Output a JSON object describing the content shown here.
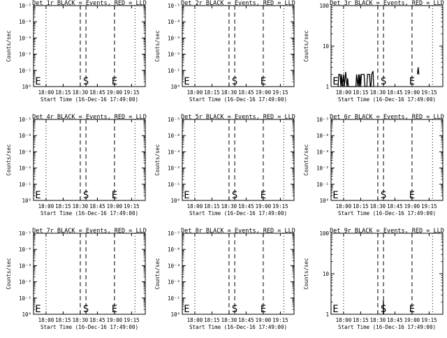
{
  "chart_data": [
    {
      "type": "line",
      "title": "Det 1r BLACK = Events, RED = LLD",
      "ylabel": "Counts/sec",
      "xlabel": "Start Time (16-Dec-16 17:49:00)",
      "x_ticks": [
        "18:00",
        "18:15",
        "18:30",
        "18:45",
        "19:00",
        "19:15"
      ],
      "y_scale": "log",
      "y_ticks": [
        "10⁰",
        "10⁻¹",
        "10⁻²",
        "10⁻³",
        "10⁻⁴",
        "10⁻⁵"
      ],
      "markers": {
        "E1": "E",
        "S": "S",
        "E2": "E"
      },
      "series": []
    },
    {
      "type": "line",
      "title": "Det 2r BLACK = Events, RED = LLD",
      "ylabel": "Counts/sec",
      "xlabel": "Start Time (16-Dec-16 17:49:00)",
      "x_ticks": [
        "18:00",
        "18:15",
        "18:30",
        "18:45",
        "19:00",
        "19:15"
      ],
      "y_scale": "log",
      "y_ticks": [
        "10⁰",
        "10⁻¹",
        "10⁻²",
        "10⁻³",
        "10⁻⁴",
        "10⁻⁵"
      ],
      "markers": {
        "E1": "E",
        "S": "S",
        "E2": "E"
      },
      "series": []
    },
    {
      "type": "line",
      "title": "Det 3r BLACK = Events, RED = LLD",
      "ylabel": "Counts/sec",
      "xlabel": "Start Time (16-Dec-16 17:49:00)",
      "x_ticks": [
        "18:00",
        "18:15",
        "18:30",
        "18:45",
        "19:00",
        "19:15"
      ],
      "y_scale": "log",
      "y_ticks": [
        "1",
        "10",
        "100"
      ],
      "markers": {
        "E1": "E",
        "S": "S",
        "E2": "E"
      },
      "series": [
        {
          "color": "#000000",
          "points": [
            [
              17.92,
              1
            ],
            [
              17.93,
              2
            ],
            [
              17.95,
              2
            ],
            [
              17.96,
              1
            ],
            [
              17.97,
              2
            ],
            [
              17.98,
              1
            ],
            [
              18.0,
              2
            ],
            [
              18.01,
              1
            ],
            [
              18.03,
              2.3
            ],
            [
              18.05,
              1
            ],
            [
              18.06,
              1.6
            ],
            [
              18.07,
              1
            ],
            [
              18.18,
              1
            ],
            [
              18.19,
              2
            ],
            [
              18.21,
              1
            ],
            [
              18.22,
              2
            ],
            [
              18.23,
              1
            ],
            [
              18.24,
              2
            ],
            [
              18.25,
              1
            ],
            [
              18.26,
              2
            ],
            [
              18.3,
              2
            ],
            [
              18.31,
              1
            ],
            [
              18.34,
              1
            ],
            [
              18.35,
              2
            ],
            [
              18.38,
              2
            ],
            [
              18.39,
              1
            ],
            [
              18.4,
              1
            ],
            [
              18.41,
              2
            ],
            [
              18.43,
              2.4
            ],
            [
              18.44,
              1
            ],
            [
              18.45,
              1
            ]
          ]
        },
        {
          "color": "#000000",
          "points": [
            [
              19.08,
              2
            ],
            [
              19.09,
              3
            ],
            [
              19.1,
              2
            ]
          ]
        }
      ]
    },
    {
      "type": "line",
      "title": "Det 4r BLACK = Events, RED = LLD",
      "ylabel": "Counts/sec",
      "xlabel": "Start Time (16-Dec-16 17:49:00)",
      "x_ticks": [
        "18:00",
        "18:15",
        "18:30",
        "18:45",
        "19:00",
        "19:15"
      ],
      "y_scale": "log",
      "y_ticks": [
        "10⁰",
        "10⁻¹",
        "10⁻²",
        "10⁻³",
        "10⁻⁴",
        "10⁻⁵"
      ],
      "markers": {
        "E1": "E",
        "S": "S",
        "E2": "E"
      },
      "series": []
    },
    {
      "type": "line",
      "title": "Det 5r BLACK = Events, RED = LLD",
      "ylabel": "Counts/sec",
      "xlabel": "Start Time (16-Dec-16 17:49:00)",
      "x_ticks": [
        "18:00",
        "18:15",
        "18:30",
        "18:45",
        "19:00",
        "19:15"
      ],
      "y_scale": "log",
      "y_ticks": [
        "10⁰",
        "10⁻¹",
        "10⁻²",
        "10⁻³",
        "10⁻⁴",
        "10⁻⁵"
      ],
      "markers": {
        "E1": "E",
        "S": "S",
        "E2": "E"
      },
      "series": []
    },
    {
      "type": "line",
      "title": "Det 6r BLACK = Events, RED = LLD",
      "ylabel": "Counts/sec",
      "xlabel": "Start Time (16-Dec-16 17:49:00)",
      "x_ticks": [
        "18:00",
        "18:15",
        "18:30",
        "18:45",
        "19:00",
        "19:15"
      ],
      "y_scale": "log",
      "y_ticks": [
        "10⁰",
        "10⁻¹",
        "10⁻²",
        "10⁻³",
        "10⁻⁴",
        "10⁻⁵"
      ],
      "markers": {
        "E1": "E",
        "S": "S",
        "E2": "E"
      },
      "series": []
    },
    {
      "type": "line",
      "title": "Det 7r BLACK = Events, RED = LLD",
      "ylabel": "Counts/sec",
      "xlabel": "Start Time (16-Dec-16 17:49:00)",
      "x_ticks": [
        "18:00",
        "18:15",
        "18:30",
        "18:45",
        "19:00",
        "19:15"
      ],
      "y_scale": "log",
      "y_ticks": [
        "10⁰",
        "10⁻¹",
        "10⁻²",
        "10⁻³",
        "10⁻⁴",
        "10⁻⁵"
      ],
      "markers": {
        "E1": "E",
        "S": "S",
        "E2": "E"
      },
      "series": []
    },
    {
      "type": "line",
      "title": "Det 8r BLACK = Events, RED = LLD",
      "ylabel": "Counts/sec",
      "xlabel": "Start Time (16-Dec-16 17:49:00)",
      "x_ticks": [
        "18:00",
        "18:15",
        "18:30",
        "18:45",
        "19:00",
        "19:15"
      ],
      "y_scale": "log",
      "y_ticks": [
        "10⁰",
        "10⁻¹",
        "10⁻²",
        "10⁻³",
        "10⁻⁴",
        "10⁻⁵"
      ],
      "markers": {
        "E1": "E",
        "S": "S",
        "E2": "E"
      },
      "series": []
    },
    {
      "type": "line",
      "title": "Det 9r BLACK = Events, RED = LLD",
      "ylabel": "Counts/sec",
      "xlabel": "Start Time (16-Dec-16 17:49:00)",
      "x_ticks": [
        "18:00",
        "18:15",
        "18:30",
        "18:45",
        "19:00",
        "19:15"
      ],
      "y_scale": "log",
      "y_ticks": [
        "1",
        "10",
        "100"
      ],
      "markers": {
        "E1": "E",
        "S": "S",
        "E2": "E"
      },
      "series": [
        {
          "color": "#000000",
          "points": [
            [
              18.58,
              1
            ],
            [
              18.58,
              2.2
            ],
            [
              18.585,
              1
            ]
          ]
        }
      ]
    }
  ]
}
